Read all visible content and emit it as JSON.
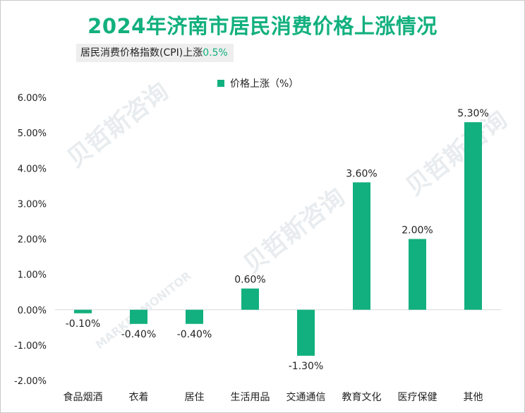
{
  "title": "2024年济南市居民消费价格上涨情况",
  "subtitle": {
    "label": "居民消费价格指数(CPI)上涨",
    "value": "0.5%"
  },
  "colors": {
    "accent": "#12b07e",
    "axis": "#d9d9d9",
    "text": "#222222"
  },
  "watermark": {
    "brand": "贝哲斯咨询",
    "sub": "MARKET MONITOR"
  },
  "chart_data": {
    "type": "bar",
    "legend": "价格上涨（%）",
    "categories": [
      "食品烟酒",
      "衣着",
      "居住",
      "生活用品",
      "交通通信",
      "教育文化",
      "医疗保健",
      "其他"
    ],
    "series": [
      {
        "name": "价格上涨（%）",
        "values": [
          -0.1,
          -0.4,
          -0.4,
          0.6,
          -1.3,
          3.6,
          2.0,
          5.3
        ]
      }
    ],
    "data_labels": [
      "-0.10%",
      "-0.40%",
      "-0.40%",
      "0.60%",
      "-1.30%",
      "3.60%",
      "2.00%",
      "5.30%"
    ],
    "ylim": [
      -2,
      6
    ],
    "yticks": [
      "-2.00%",
      "-1.00%",
      "0.00%",
      "1.00%",
      "2.00%",
      "3.00%",
      "4.00%",
      "5.00%",
      "6.00%"
    ],
    "ytick_values": [
      -2,
      -1,
      0,
      1,
      2,
      3,
      4,
      5,
      6
    ],
    "xlabel": "",
    "ylabel": "",
    "grid": false
  }
}
